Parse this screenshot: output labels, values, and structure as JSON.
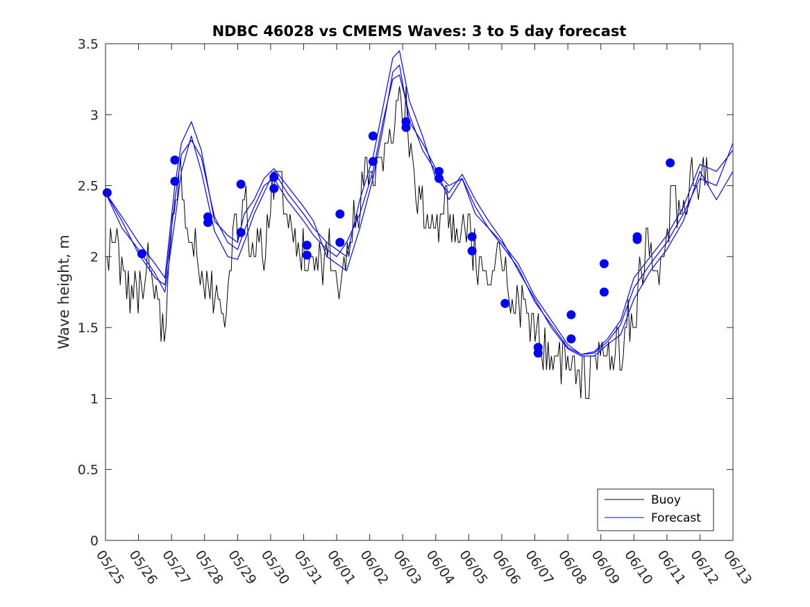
{
  "chart_data": {
    "type": "line",
    "title": "NDBC 46028 vs CMEMS Waves: 3 to 5 day forecast",
    "xlabel": "",
    "ylabel": "Wave height, m",
    "xlim": [
      0,
      19
    ],
    "ylim": [
      0,
      3.5
    ],
    "grid": false,
    "legend_placement": "bottom-right",
    "x_tick_labels": [
      "05/25",
      "05/26",
      "05/27",
      "05/28",
      "05/29",
      "05/30",
      "05/31",
      "06/01",
      "06/02",
      "06/03",
      "06/04",
      "06/05",
      "06/06",
      "06/07",
      "06/08",
      "06/09",
      "06/10",
      "06/11",
      "06/12",
      "06/13"
    ],
    "y_ticks": [
      0,
      0.5,
      1,
      1.5,
      2,
      2.5,
      3,
      3.5
    ],
    "y_tick_labels": [
      "0",
      "0.5",
      "1",
      "1.5",
      "2",
      "2.5",
      "3",
      "3.5"
    ],
    "colors": {
      "buoy": "#000000",
      "forecast": "#0000ff"
    },
    "legend": [
      {
        "label": "Buoy",
        "color": "#000000"
      },
      {
        "label": "Forecast",
        "color": "#0000ff"
      }
    ],
    "buoy_anchors": [
      [
        0.0,
        2.0
      ],
      [
        0.25,
        2.2
      ],
      [
        0.5,
        1.9
      ],
      [
        0.8,
        1.7
      ],
      [
        1.0,
        1.8
      ],
      [
        1.3,
        1.9
      ],
      [
        1.6,
        1.75
      ],
      [
        1.7,
        1.4
      ],
      [
        1.8,
        1.6
      ],
      [
        2.0,
        2.1
      ],
      [
        2.2,
        2.6
      ],
      [
        2.4,
        2.4
      ],
      [
        2.6,
        2.1
      ],
      [
        2.8,
        2.0
      ],
      [
        3.0,
        1.8
      ],
      [
        3.3,
        1.75
      ],
      [
        3.6,
        1.6
      ],
      [
        3.8,
        2.0
      ],
      [
        4.0,
        2.2
      ],
      [
        4.2,
        2.4
      ],
      [
        4.5,
        2.0
      ],
      [
        4.8,
        2.1
      ],
      [
        5.0,
        2.4
      ],
      [
        5.2,
        2.75
      ],
      [
        5.4,
        2.4
      ],
      [
        5.6,
        2.2
      ],
      [
        5.8,
        2.0
      ],
      [
        6.0,
        2.1
      ],
      [
        6.2,
        2.0
      ],
      [
        6.5,
        1.9
      ],
      [
        6.7,
        2.2
      ],
      [
        6.9,
        1.95
      ],
      [
        7.1,
        1.8
      ],
      [
        7.3,
        2.0
      ],
      [
        7.6,
        2.3
      ],
      [
        7.9,
        2.6
      ],
      [
        8.1,
        2.7
      ],
      [
        8.3,
        2.5
      ],
      [
        8.5,
        2.8
      ],
      [
        8.7,
        2.7
      ],
      [
        8.9,
        3.1
      ],
      [
        9.1,
        3.0
      ],
      [
        9.3,
        2.6
      ],
      [
        9.5,
        2.4
      ],
      [
        9.7,
        2.2
      ],
      [
        9.9,
        2.3
      ],
      [
        10.1,
        2.2
      ],
      [
        10.3,
        2.35
      ],
      [
        10.5,
        2.2
      ],
      [
        10.7,
        2.1
      ],
      [
        10.9,
        2.3
      ],
      [
        11.1,
        2.1
      ],
      [
        11.3,
        1.9
      ],
      [
        11.5,
        1.8
      ],
      [
        11.7,
        1.85
      ],
      [
        11.9,
        2.0
      ],
      [
        12.1,
        1.9
      ],
      [
        12.3,
        1.7
      ],
      [
        12.6,
        1.6
      ],
      [
        12.9,
        1.5
      ],
      [
        13.2,
        1.4
      ],
      [
        13.5,
        1.3
      ],
      [
        13.7,
        1.25
      ],
      [
        14.0,
        1.3
      ],
      [
        14.3,
        1.2
      ],
      [
        14.6,
        1.15
      ],
      [
        14.9,
        1.3
      ],
      [
        15.2,
        1.25
      ],
      [
        15.5,
        1.3
      ],
      [
        15.8,
        1.5
      ],
      [
        16.0,
        1.6
      ],
      [
        16.2,
        1.9
      ],
      [
        16.4,
        2.1
      ],
      [
        16.6,
        2.0
      ],
      [
        16.8,
        1.8
      ],
      [
        17.0,
        2.2
      ],
      [
        17.2,
        2.4
      ],
      [
        17.4,
        2.3
      ],
      [
        17.6,
        2.4
      ],
      [
        17.8,
        2.6
      ],
      [
        18.0,
        2.5
      ],
      [
        18.2,
        2.7
      ],
      [
        18.25,
        2.5
      ]
    ],
    "buoy_count": 370,
    "series": [
      {
        "name": "Forecast",
        "lines": [
          [
            [
              0,
              2.45
            ],
            [
              0.5,
              2.25
            ],
            [
              1.0,
              2.02
            ],
            [
              1.5,
              1.85
            ],
            [
              1.8,
              1.8
            ],
            [
              2.1,
              2.4
            ],
            [
              2.3,
              2.72
            ],
            [
              2.6,
              2.82
            ],
            [
              2.9,
              2.7
            ],
            [
              3.3,
              2.28
            ],
            [
              3.7,
              2.1
            ],
            [
              4.0,
              2.05
            ],
            [
              4.2,
              2.18
            ],
            [
              4.5,
              2.35
            ],
            [
              4.8,
              2.5
            ],
            [
              5.1,
              2.55
            ],
            [
              5.5,
              2.4
            ],
            [
              6.0,
              2.25
            ],
            [
              6.3,
              2.15
            ],
            [
              6.7,
              2.05
            ],
            [
              7.0,
              2.0
            ],
            [
              7.3,
              2.1
            ],
            [
              7.7,
              2.3
            ],
            [
              8.1,
              2.6
            ],
            [
              8.4,
              2.95
            ],
            [
              8.7,
              3.25
            ],
            [
              8.9,
              3.28
            ],
            [
              9.2,
              3.0
            ],
            [
              9.6,
              2.75
            ],
            [
              10.0,
              2.6
            ],
            [
              10.4,
              2.5
            ],
            [
              10.8,
              2.55
            ],
            [
              11.2,
              2.35
            ],
            [
              11.6,
              2.2
            ],
            [
              12.0,
              2.1
            ],
            [
              12.5,
              1.95
            ],
            [
              13.0,
              1.72
            ],
            [
              13.5,
              1.55
            ],
            [
              14.0,
              1.38
            ],
            [
              14.4,
              1.31
            ],
            [
              14.8,
              1.32
            ],
            [
              15.2,
              1.4
            ],
            [
              15.6,
              1.52
            ],
            [
              16.0,
              1.78
            ],
            [
              16.5,
              1.95
            ],
            [
              17.0,
              2.1
            ],
            [
              17.5,
              2.3
            ],
            [
              18.0,
              2.55
            ],
            [
              18.5,
              2.5
            ],
            [
              19.0,
              2.8
            ]
          ],
          [
            [
              0,
              2.45
            ],
            [
              0.5,
              2.2
            ],
            [
              1.0,
              2.05
            ],
            [
              1.5,
              1.88
            ],
            [
              1.8,
              1.75
            ],
            [
              2.1,
              2.25
            ],
            [
              2.3,
              2.6
            ],
            [
              2.6,
              2.85
            ],
            [
              2.9,
              2.6
            ],
            [
              3.3,
              2.18
            ],
            [
              3.7,
              2.0
            ],
            [
              4.0,
              1.98
            ],
            [
              4.2,
              2.1
            ],
            [
              4.5,
              2.3
            ],
            [
              4.8,
              2.45
            ],
            [
              5.1,
              2.6
            ],
            [
              5.5,
              2.45
            ],
            [
              6.0,
              2.3
            ],
            [
              6.3,
              2.2
            ],
            [
              6.7,
              2.1
            ],
            [
              7.0,
              2.05
            ],
            [
              7.3,
              2.0
            ],
            [
              7.7,
              2.4
            ],
            [
              8.1,
              2.7
            ],
            [
              8.4,
              3.05
            ],
            [
              8.7,
              3.4
            ],
            [
              8.9,
              3.45
            ],
            [
              9.2,
              3.1
            ],
            [
              9.6,
              2.85
            ],
            [
              10.0,
              2.55
            ],
            [
              10.4,
              2.45
            ],
            [
              10.8,
              2.58
            ],
            [
              11.2,
              2.4
            ],
            [
              11.6,
              2.25
            ],
            [
              12.0,
              2.12
            ],
            [
              12.5,
              1.9
            ],
            [
              13.0,
              1.7
            ],
            [
              13.5,
              1.5
            ],
            [
              14.0,
              1.35
            ],
            [
              14.4,
              1.3
            ],
            [
              14.8,
              1.3
            ],
            [
              15.2,
              1.38
            ],
            [
              15.6,
              1.45
            ],
            [
              16.0,
              1.7
            ],
            [
              16.5,
              1.9
            ],
            [
              17.0,
              2.05
            ],
            [
              17.5,
              2.25
            ],
            [
              18.0,
              2.6
            ],
            [
              18.5,
              2.4
            ],
            [
              19.0,
              2.6
            ]
          ],
          [
            [
              0,
              2.45
            ],
            [
              0.5,
              2.28
            ],
            [
              1.0,
              2.1
            ],
            [
              1.5,
              1.95
            ],
            [
              1.8,
              1.85
            ],
            [
              2.1,
              2.5
            ],
            [
              2.3,
              2.8
            ],
            [
              2.6,
              2.95
            ],
            [
              2.9,
              2.75
            ],
            [
              3.3,
              2.25
            ],
            [
              3.7,
              2.15
            ],
            [
              4.0,
              2.1
            ],
            [
              4.2,
              2.3
            ],
            [
              4.5,
              2.4
            ],
            [
              4.8,
              2.55
            ],
            [
              5.1,
              2.62
            ],
            [
              5.5,
              2.5
            ],
            [
              6.0,
              2.35
            ],
            [
              6.3,
              2.25
            ],
            [
              6.7,
              2.0
            ],
            [
              7.0,
              1.95
            ],
            [
              7.3,
              1.9
            ],
            [
              7.7,
              2.2
            ],
            [
              8.1,
              2.55
            ],
            [
              8.4,
              2.9
            ],
            [
              8.7,
              3.3
            ],
            [
              8.9,
              3.35
            ],
            [
              9.2,
              2.95
            ],
            [
              9.6,
              2.8
            ],
            [
              10.0,
              2.62
            ],
            [
              10.4,
              2.4
            ],
            [
              10.8,
              2.55
            ],
            [
              11.2,
              2.3
            ],
            [
              11.6,
              2.2
            ],
            [
              12.0,
              2.08
            ],
            [
              12.5,
              1.92
            ],
            [
              13.0,
              1.68
            ],
            [
              13.5,
              1.52
            ],
            [
              14.0,
              1.36
            ],
            [
              14.4,
              1.31
            ],
            [
              14.8,
              1.33
            ],
            [
              15.2,
              1.42
            ],
            [
              15.6,
              1.55
            ],
            [
              16.0,
              1.85
            ],
            [
              16.5,
              2.0
            ],
            [
              17.0,
              2.15
            ],
            [
              17.5,
              2.35
            ],
            [
              18.0,
              2.65
            ],
            [
              18.5,
              2.6
            ],
            [
              19.0,
              2.75
            ]
          ]
        ],
        "markers": [
          [
            0.05,
            2.45
          ],
          [
            1.1,
            2.02
          ],
          [
            2.1,
            2.68
          ],
          [
            2.1,
            2.53
          ],
          [
            3.1,
            2.28
          ],
          [
            3.1,
            2.24
          ],
          [
            4.1,
            2.51
          ],
          [
            4.1,
            2.17
          ],
          [
            5.1,
            2.56
          ],
          [
            5.1,
            2.48
          ],
          [
            6.1,
            2.08
          ],
          [
            6.1,
            2.01
          ],
          [
            7.1,
            2.3
          ],
          [
            7.1,
            2.1
          ],
          [
            8.1,
            2.85
          ],
          [
            8.1,
            2.67
          ],
          [
            9.1,
            2.95
          ],
          [
            9.1,
            2.91
          ],
          [
            10.1,
            2.6
          ],
          [
            10.1,
            2.55
          ],
          [
            11.1,
            2.14
          ],
          [
            11.1,
            2.04
          ],
          [
            12.1,
            1.67
          ],
          [
            13.1,
            1.36
          ],
          [
            13.1,
            1.32
          ],
          [
            14.1,
            1.59
          ],
          [
            14.1,
            1.42
          ],
          [
            15.1,
            1.95
          ],
          [
            15.1,
            1.75
          ],
          [
            16.1,
            2.14
          ],
          [
            16.1,
            2.12
          ],
          [
            17.1,
            2.66
          ]
        ]
      }
    ]
  }
}
